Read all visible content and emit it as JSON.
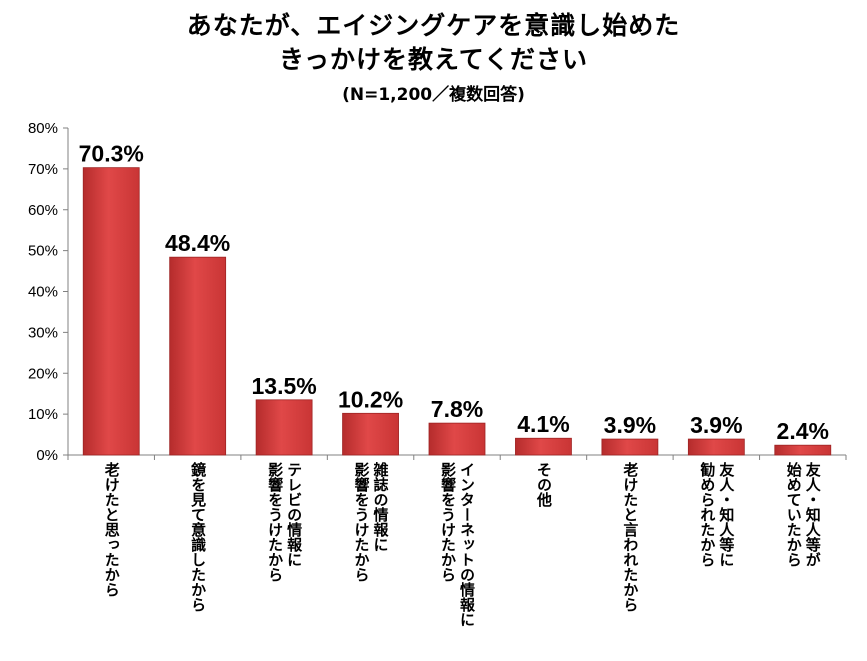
{
  "header": {
    "title_line1": "あなたが、エイジングケアを意識し始めた",
    "title_line2": "きっかけを教えてください",
    "subtitle": "(N=1,200／複数回答)"
  },
  "chart_data": {
    "type": "bar",
    "title": "あなたが、エイジングケアを意識し始めた きっかけを教えてください",
    "subtitle": "(N=1,200／複数回答)",
    "xlabel": "",
    "ylabel": "",
    "ylim": [
      0,
      80
    ],
    "yticks": [
      "0%",
      "10%",
      "20%",
      "30%",
      "40%",
      "50%",
      "60%",
      "70%",
      "80%"
    ],
    "grid": false,
    "legend": "none",
    "bar_color": "#d9403f",
    "categories": [
      [
        "老けたと思ったから"
      ],
      [
        "鏡を見て意識したから"
      ],
      [
        "テレビの情報に",
        "影響をうけたから"
      ],
      [
        "雑誌の情報に",
        "影響をうけたから"
      ],
      [
        "インターネットの情報に",
        "影響をうけたから"
      ],
      [
        "その他"
      ],
      [
        "老けたと言われたから"
      ],
      [
        "友人・知人等に",
        "勧められたから"
      ],
      [
        "友人・知人等が",
        "始めていたから"
      ]
    ],
    "values": [
      70.3,
      48.4,
      13.5,
      10.2,
      7.8,
      4.1,
      3.9,
      3.9,
      2.4
    ],
    "data_labels": [
      "70.3%",
      "48.4%",
      "13.5%",
      "10.2%",
      "7.8%",
      "4.1%",
      "3.9%",
      "3.9%",
      "2.4%"
    ]
  }
}
